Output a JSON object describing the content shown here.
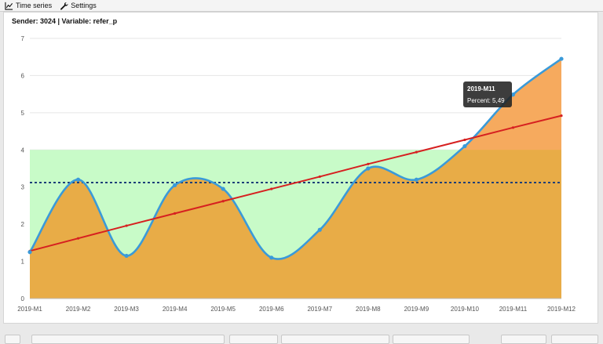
{
  "tabs": [
    {
      "label": "Time series",
      "icon": "line-chart-icon"
    },
    {
      "label": "Settings",
      "icon": "wrench-icon"
    }
  ],
  "panel": {
    "header": "Sender: 3024 | Variable: refer_p"
  },
  "tooltip": {
    "title": "2019-M11",
    "text": "Percent: 5,49"
  },
  "colors": {
    "series_line": "#3a9ad9",
    "series_fill": "#e8ac47",
    "series_fill_above": "#f6aa5e",
    "trend": "#d62020",
    "mean": "#1c3f78",
    "band": "#c8fbc8"
  },
  "chart_data": {
    "type": "line",
    "categories": [
      "2019-M1",
      "2019-M2",
      "2019-M3",
      "2019-M4",
      "2019-M5",
      "2019-M6",
      "2019-M7",
      "2019-M8",
      "2019-M9",
      "2019-M10",
      "2019-M11",
      "2019-M12"
    ],
    "series": [
      {
        "values": [
          1.25,
          3.2,
          1.15,
          3.05,
          2.95,
          1.1,
          1.85,
          3.5,
          3.2,
          4.1,
          5.49,
          6.45
        ]
      },
      {
        "values": [
          1.28,
          1.62,
          1.96,
          2.29,
          2.62,
          2.95,
          3.28,
          3.62,
          3.94,
          4.27,
          4.6,
          4.92
        ]
      }
    ],
    "mean_line": 3.12,
    "band": [
      0,
      4
    ],
    "ylim": [
      0,
      7
    ],
    "yticks": [
      0,
      1,
      2,
      3,
      4,
      5,
      6,
      7
    ],
    "grid": true
  }
}
